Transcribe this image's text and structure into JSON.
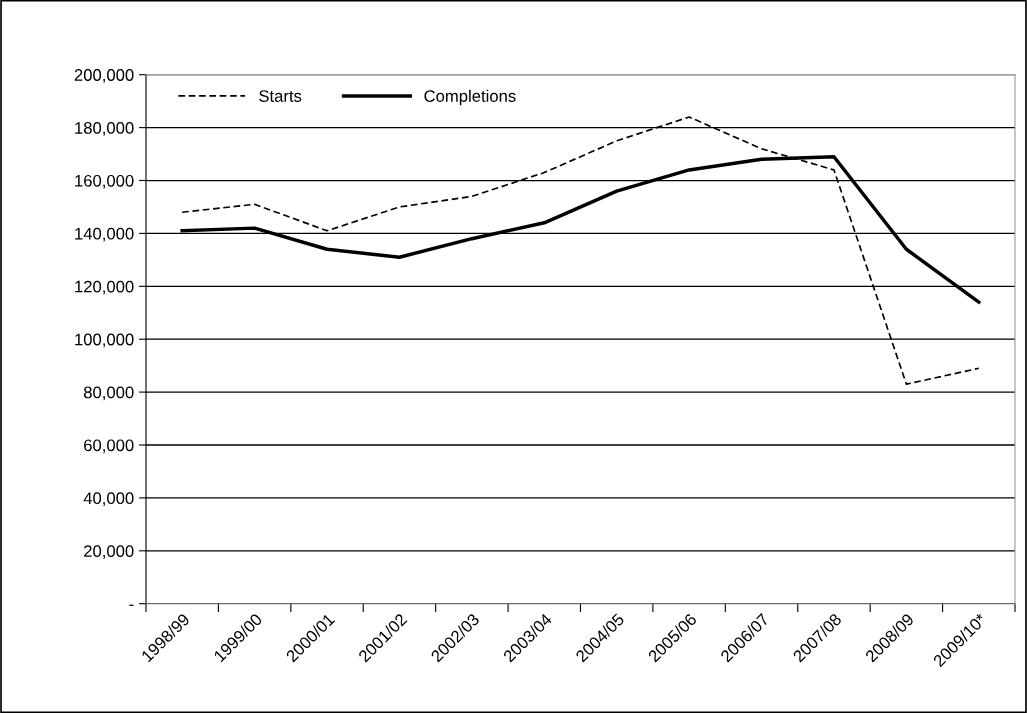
{
  "chart_data": {
    "type": "line",
    "categories": [
      "1998/99",
      "1999/00",
      "2000/01",
      "2001/02",
      "2002/03",
      "2003/04",
      "2004/05",
      "2005/06",
      "2006/07",
      "2007/08",
      "2008/09",
      "2009/10*"
    ],
    "series": [
      {
        "name": "Starts",
        "color": "#000000",
        "line_style": "dashed",
        "values": [
          148000,
          151000,
          141000,
          150000,
          154000,
          163000,
          175000,
          184000,
          172000,
          164000,
          83000,
          89000
        ]
      },
      {
        "name": "Completions",
        "color": "#000000",
        "line_style": "solid",
        "values": [
          141000,
          142000,
          134000,
          131000,
          138000,
          144000,
          156000,
          164000,
          168000,
          169000,
          134000,
          114000
        ]
      }
    ],
    "ylim": [
      0,
      200000
    ],
    "yticks": [
      {
        "value": 0,
        "label": "-"
      },
      {
        "value": 20000,
        "label": "20,000"
      },
      {
        "value": 40000,
        "label": "40,000"
      },
      {
        "value": 60000,
        "label": "60,000"
      },
      {
        "value": 80000,
        "label": "80,000"
      },
      {
        "value": 100000,
        "label": "100,000"
      },
      {
        "value": 120000,
        "label": "120,000"
      },
      {
        "value": 140000,
        "label": "140,000"
      },
      {
        "value": 160000,
        "label": "160,000"
      },
      {
        "value": 180000,
        "label": "180,000"
      },
      {
        "value": 200000,
        "label": "200,000"
      }
    ],
    "grid": "y",
    "legend": "top left",
    "marker": "none"
  }
}
